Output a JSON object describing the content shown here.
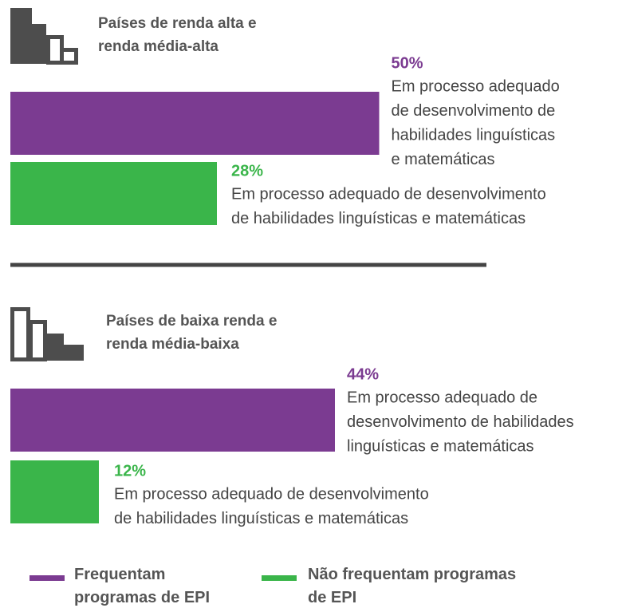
{
  "chart_data": {
    "type": "bar",
    "series": [
      {
        "name": "Frequentam programas de EPI",
        "color": "#7b3b91"
      },
      {
        "name": "Não frequentam programas de EPI",
        "color": "#3ab54a"
      }
    ],
    "panels": [
      {
        "title_lines": [
          "Países de renda alta e",
          "renda média-alta"
        ],
        "values": [
          50,
          28
        ],
        "value_labels": [
          "50%",
          "28%"
        ],
        "descriptions": [
          [
            "Em processo adequado",
            "de desenvolvimento de",
            "habilidades linguísticas",
            "e matemáticas"
          ],
          [
            "Em processo adequado de desenvolvimento",
            "de habilidades linguísticas e matemáticas"
          ]
        ]
      },
      {
        "title_lines": [
          "Países de baixa renda e",
          "renda média-baixa"
        ],
        "values": [
          44,
          12
        ],
        "value_labels": [
          "44%",
          "12%"
        ],
        "descriptions": [
          [
            "Em processo adequado de",
            "desenvolvimento de habilidades",
            "linguísticas e matemáticas"
          ],
          [
            "Em processo adequado de desenvolvimento",
            "de habilidades linguísticas e matemáticas"
          ]
        ]
      }
    ]
  }
}
